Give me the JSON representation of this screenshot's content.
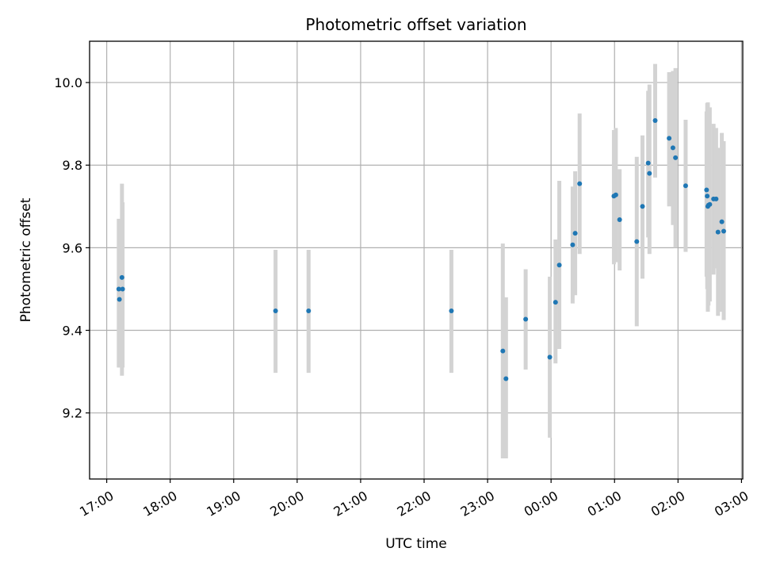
{
  "chart_data": {
    "type": "scatter",
    "title": "Photometric offset variation",
    "xlabel": "UTC time",
    "ylabel": "Photometric offset",
    "x_unit": "hours since 17:00 UTC",
    "xlim": [
      -0.27,
      10.02
    ],
    "ylim": [
      9.04,
      10.1
    ],
    "grid": true,
    "x_ticks": [
      {
        "value": 0,
        "label": "17:00"
      },
      {
        "value": 1,
        "label": "18:00"
      },
      {
        "value": 2,
        "label": "19:00"
      },
      {
        "value": 3,
        "label": "20:00"
      },
      {
        "value": 4,
        "label": "21:00"
      },
      {
        "value": 5,
        "label": "22:00"
      },
      {
        "value": 6,
        "label": "23:00"
      },
      {
        "value": 7,
        "label": "00:00"
      },
      {
        "value": 8,
        "label": "01:00"
      },
      {
        "value": 9,
        "label": "02:00"
      },
      {
        "value": 10,
        "label": "03:00"
      }
    ],
    "y_ticks": [
      {
        "value": 9.2,
        "label": "9.2"
      },
      {
        "value": 9.4,
        "label": "9.4"
      },
      {
        "value": 9.6,
        "label": "9.6"
      },
      {
        "value": 9.8,
        "label": "9.8"
      },
      {
        "value": 10.0,
        "label": "10.0"
      }
    ],
    "points": [
      {
        "x": 0.19,
        "y": 9.5,
        "lo": 9.31,
        "hi": 9.67
      },
      {
        "x": 0.2,
        "y": 9.475,
        "lo": 9.31,
        "hi": 9.64
      },
      {
        "x": 0.24,
        "y": 9.528,
        "lo": 9.29,
        "hi": 9.755
      },
      {
        "x": 0.25,
        "y": 9.5,
        "lo": 9.31,
        "hi": 9.71
      },
      {
        "x": 2.66,
        "y": 9.447,
        "lo": 9.297,
        "hi": 9.595
      },
      {
        "x": 3.18,
        "y": 9.447,
        "lo": 9.297,
        "hi": 9.595
      },
      {
        "x": 5.43,
        "y": 9.447,
        "lo": 9.297,
        "hi": 9.595
      },
      {
        "x": 6.24,
        "y": 9.35,
        "lo": 9.09,
        "hi": 9.61
      },
      {
        "x": 6.29,
        "y": 9.283,
        "lo": 9.09,
        "hi": 9.48
      },
      {
        "x": 6.6,
        "y": 9.427,
        "lo": 9.305,
        "hi": 9.548
      },
      {
        "x": 6.98,
        "y": 9.335,
        "lo": 9.14,
        "hi": 9.53
      },
      {
        "x": 7.07,
        "y": 9.468,
        "lo": 9.32,
        "hi": 9.62
      },
      {
        "x": 7.13,
        "y": 9.558,
        "lo": 9.355,
        "hi": 9.762
      },
      {
        "x": 7.34,
        "y": 9.607,
        "lo": 9.465,
        "hi": 9.748
      },
      {
        "x": 7.38,
        "y": 9.635,
        "lo": 9.485,
        "hi": 9.785
      },
      {
        "x": 7.45,
        "y": 9.755,
        "lo": 9.585,
        "hi": 9.925
      },
      {
        "x": 7.99,
        "y": 9.725,
        "lo": 9.56,
        "hi": 9.885
      },
      {
        "x": 8.02,
        "y": 9.728,
        "lo": 9.565,
        "hi": 9.89
      },
      {
        "x": 8.08,
        "y": 9.668,
        "lo": 9.545,
        "hi": 9.79
      },
      {
        "x": 8.35,
        "y": 9.615,
        "lo": 9.41,
        "hi": 9.82
      },
      {
        "x": 8.44,
        "y": 9.7,
        "lo": 9.525,
        "hi": 9.872
      },
      {
        "x": 8.53,
        "y": 9.805,
        "lo": 9.625,
        "hi": 9.98
      },
      {
        "x": 8.55,
        "y": 9.78,
        "lo": 9.585,
        "hi": 9.995
      },
      {
        "x": 8.64,
        "y": 9.908,
        "lo": 9.77,
        "hi": 10.045
      },
      {
        "x": 8.86,
        "y": 9.865,
        "lo": 9.7,
        "hi": 10.025
      },
      {
        "x": 8.92,
        "y": 9.842,
        "lo": 9.655,
        "hi": 10.028
      },
      {
        "x": 8.96,
        "y": 9.818,
        "lo": 9.6,
        "hi": 10.035
      },
      {
        "x": 9.12,
        "y": 9.75,
        "lo": 9.59,
        "hi": 9.91
      },
      {
        "x": 9.45,
        "y": 9.74,
        "lo": 9.53,
        "hi": 9.93
      },
      {
        "x": 9.46,
        "y": 9.725,
        "lo": 9.5,
        "hi": 9.95
      },
      {
        "x": 9.47,
        "y": 9.7,
        "lo": 9.445,
        "hi": 9.952
      },
      {
        "x": 9.48,
        "y": 9.703,
        "lo": 9.46,
        "hi": 9.935
      },
      {
        "x": 9.5,
        "y": 9.705,
        "lo": 9.47,
        "hi": 9.94
      },
      {
        "x": 9.56,
        "y": 9.718,
        "lo": 9.535,
        "hi": 9.9
      },
      {
        "x": 9.6,
        "y": 9.718,
        "lo": 9.55,
        "hi": 9.89
      },
      {
        "x": 9.63,
        "y": 9.638,
        "lo": 9.435,
        "hi": 9.842
      },
      {
        "x": 9.69,
        "y": 9.663,
        "lo": 9.445,
        "hi": 9.878
      },
      {
        "x": 9.72,
        "y": 9.64,
        "lo": 9.425,
        "hi": 9.858
      }
    ]
  }
}
